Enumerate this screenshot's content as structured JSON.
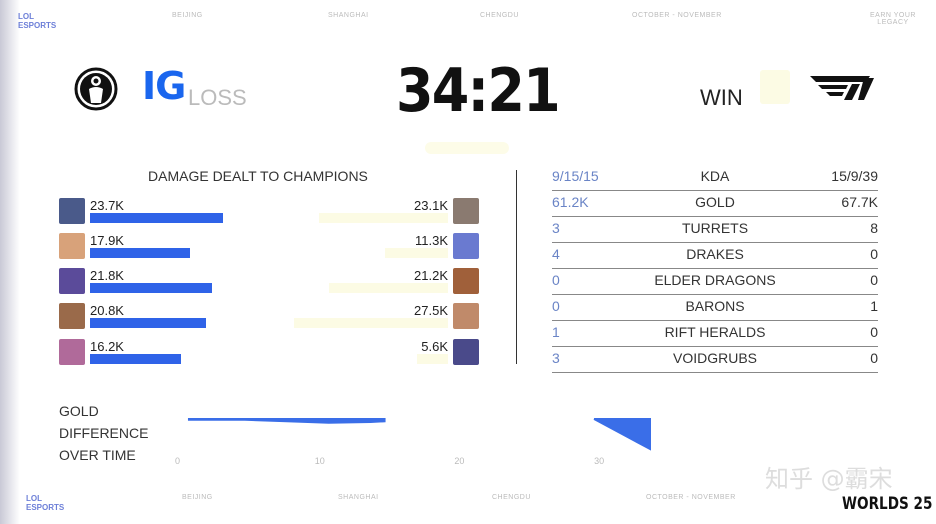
{
  "banner_top": {
    "brand": [
      "LOL",
      "ESPORTS"
    ],
    "items": [
      "BEIJING",
      "SHANGHAI",
      "CHENGDU",
      "OCTOBER - NOVEMBER"
    ],
    "right": [
      "EARN YOUR",
      "LEGACY"
    ]
  },
  "banner_bottom": {
    "brand": [
      "LOL",
      "ESPORTS"
    ],
    "items": [
      "BEIJING",
      "SHANGHAI",
      "CHENGDU",
      "OCTOBER - NOVEMBER"
    ],
    "watermark": "知乎 @霸宋",
    "event_logo": "WORLDS 25"
  },
  "header": {
    "left_team": {
      "tag": "IG",
      "result": "LOSS",
      "logo": "ig-logo",
      "color": "#1a66ee"
    },
    "right_team": {
      "tag": "T1",
      "result": "WIN",
      "logo": "t1-logo",
      "tag_color": "#fbf9de"
    },
    "timer": "34:21"
  },
  "damage": {
    "title": "DAMAGE DEALT TO CHAMPIONS",
    "max_k": 30,
    "left": [
      {
        "value": "23.7K",
        "k": 23.7,
        "color": "#4a5a8a"
      },
      {
        "value": "17.9K",
        "k": 17.9,
        "color": "#d8a27a"
      },
      {
        "value": "21.8K",
        "k": 21.8,
        "color": "#5b4b9a"
      },
      {
        "value": "20.8K",
        "k": 20.8,
        "color": "#9a6a4a"
      },
      {
        "value": "16.2K",
        "k": 16.2,
        "color": "#b06a9a"
      }
    ],
    "right": [
      {
        "value": "23.1K",
        "k": 23.1,
        "color": "#8a7a70"
      },
      {
        "value": "11.3K",
        "k": 11.3,
        "color": "#6a7ad0"
      },
      {
        "value": "21.2K",
        "k": 21.2,
        "color": "#a0603a"
      },
      {
        "value": "27.5K",
        "k": 27.5,
        "color": "#c08a6a"
      },
      {
        "value": "5.6K",
        "k": 5.6,
        "color": "#4a4a8a"
      }
    ],
    "left_bar_color": "#2f63e8",
    "right_bar_color": "#fcfbe4"
  },
  "stats": [
    {
      "left": "9/15/15",
      "label": "KDA",
      "right": "15/9/39"
    },
    {
      "left": "61.2K",
      "label": "GOLD",
      "right": "67.7K"
    },
    {
      "left": "3",
      "label": "TURRETS",
      "right": "8"
    },
    {
      "left": "4",
      "label": "DRAKES",
      "right": "0"
    },
    {
      "left": "0",
      "label": "ELDER DRAGONS",
      "right": "0"
    },
    {
      "left": "0",
      "label": "BARONS",
      "right": "1"
    },
    {
      "left": "1",
      "label": "RIFT HERALDS",
      "right": "0"
    },
    {
      "left": "3",
      "label": "VOIDGRUBS",
      "right": "0"
    }
  ],
  "gold_chart": {
    "title": [
      "GOLD",
      "DIFFERENCE",
      "OVER TIME"
    ],
    "chart_data": {
      "type": "area",
      "x_ticks": [
        "0",
        "10",
        "20",
        "30"
      ],
      "xlim": [
        0,
        34
      ],
      "points": [
        [
          1,
          -100
        ],
        [
          4,
          -100
        ],
        [
          5,
          -100
        ],
        [
          8,
          -300
        ],
        [
          11,
          -500
        ],
        [
          14,
          -400
        ],
        [
          15,
          -300
        ],
        [
          30,
          0
        ],
        [
          32,
          -2000
        ],
        [
          34,
          -4000
        ]
      ],
      "color": "#3a6ee8"
    }
  }
}
